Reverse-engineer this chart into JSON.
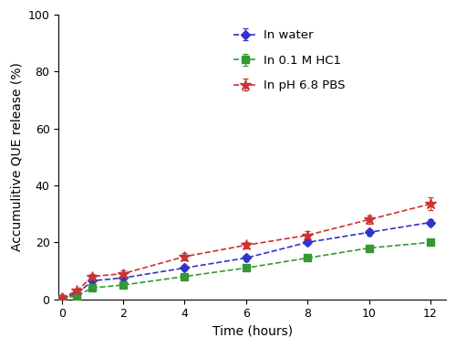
{
  "time": [
    0,
    0.5,
    1,
    2,
    4,
    6,
    8,
    10,
    12
  ],
  "water_y": [
    0.5,
    2.0,
    6.5,
    7.5,
    11.0,
    14.5,
    20.0,
    23.5,
    27.0
  ],
  "water_err": [
    0.3,
    0.4,
    0.7,
    0.7,
    1.0,
    1.0,
    1.0,
    1.0,
    1.2
  ],
  "hcl_y": [
    0.3,
    1.2,
    4.0,
    5.0,
    8.0,
    11.0,
    14.5,
    18.0,
    20.0
  ],
  "hcl_err": [
    0.2,
    0.3,
    0.5,
    0.6,
    0.8,
    0.8,
    0.9,
    0.9,
    1.0
  ],
  "pbs_y": [
    0.5,
    3.0,
    8.0,
    9.0,
    15.0,
    19.0,
    22.5,
    28.0,
    33.5
  ],
  "pbs_err": [
    0.3,
    0.5,
    0.8,
    1.0,
    1.2,
    1.2,
    1.5,
    1.5,
    2.2
  ],
  "water_color": "#3333CC",
  "hcl_color": "#339933",
  "pbs_color": "#CC3333",
  "water_label": "In water",
  "hcl_label": "In 0.1 M HC1",
  "pbs_label": "In pH 6.8 PBS",
  "xlabel": "Time (hours)",
  "ylabel": "Accumulitive QUE release (%)",
  "ylim": [
    0,
    100
  ],
  "xlim": [
    -0.1,
    12.5
  ],
  "xticks": [
    0,
    2,
    4,
    6,
    8,
    10,
    12
  ],
  "yticks": [
    0,
    20,
    40,
    60,
    80,
    100
  ],
  "background_color": "#ffffff"
}
